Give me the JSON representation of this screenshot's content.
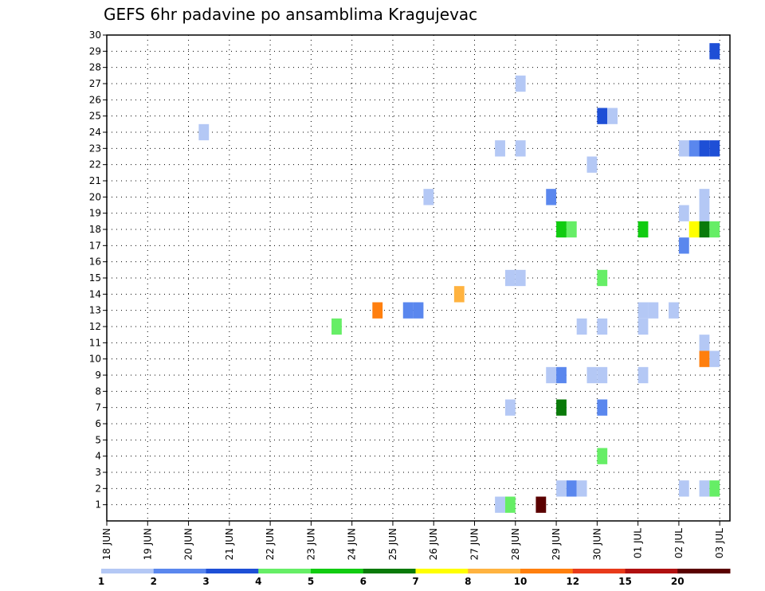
{
  "chart_data": {
    "type": "heatmap",
    "title": "GEFS 6hr padavine po ansamblima Kragujevac",
    "xlabel": "",
    "ylabel": "",
    "x_ticks": [
      "18 JUN",
      "19 JUN",
      "20 JUN",
      "21 JUN",
      "22 JUN",
      "23 JUN",
      "24 JUN",
      "25 JUN",
      "26 JUN",
      "27 JUN",
      "28 JUN",
      "29 JUN",
      "30 JUN",
      "01 JUL",
      "02 JUL",
      "03 JUL"
    ],
    "xlim_days": [
      0,
      15.25
    ],
    "y_ticks": [
      1,
      2,
      3,
      4,
      5,
      6,
      7,
      8,
      9,
      10,
      11,
      12,
      13,
      14,
      15,
      16,
      17,
      18,
      19,
      20,
      21,
      22,
      23,
      24,
      25,
      26,
      27,
      28,
      29,
      30
    ],
    "ylim": [
      0,
      30
    ],
    "grid": true,
    "colorbar": {
      "levels": [
        "1",
        "2",
        "3",
        "4",
        "5",
        "6",
        "7",
        "8",
        "10",
        "12",
        "15",
        "20"
      ],
      "colors": [
        "#b4c8f5",
        "#5a87ee",
        "#1e4fd6",
        "#66ee66",
        "#11cc11",
        "#0a7a0a",
        "#ffff00",
        "#ffb340",
        "#ff7f0e",
        "#e83a1a",
        "#b01010",
        "#5a0000"
      ]
    },
    "cells_note": "each cell: [day_offset_from_18_JUN, member, color_index]",
    "cells": [
      [
        14.75,
        29,
        2
      ],
      [
        10.0,
        27,
        0
      ],
      [
        12.0,
        25,
        2
      ],
      [
        12.25,
        25,
        0
      ],
      [
        2.25,
        24,
        0
      ],
      [
        9.5,
        23,
        0
      ],
      [
        10.0,
        23,
        0
      ],
      [
        14.0,
        23,
        0
      ],
      [
        14.25,
        23,
        1
      ],
      [
        14.5,
        23,
        2
      ],
      [
        14.75,
        23,
        2
      ],
      [
        11.75,
        22,
        0
      ],
      [
        7.75,
        20,
        0
      ],
      [
        10.75,
        20,
        1
      ],
      [
        14.5,
        20,
        0
      ],
      [
        14.0,
        19,
        0
      ],
      [
        14.5,
        19,
        0
      ],
      [
        11.0,
        18,
        4
      ],
      [
        11.25,
        18,
        3
      ],
      [
        13.0,
        18,
        4
      ],
      [
        14.25,
        18,
        6
      ],
      [
        14.5,
        18,
        5
      ],
      [
        14.75,
        18,
        3
      ],
      [
        14.0,
        17,
        1
      ],
      [
        9.75,
        15,
        0
      ],
      [
        10.0,
        15,
        0
      ],
      [
        12.0,
        15,
        3
      ],
      [
        8.5,
        14,
        7
      ],
      [
        6.5,
        13,
        8
      ],
      [
        7.25,
        13,
        1
      ],
      [
        7.5,
        13,
        1
      ],
      [
        13.0,
        13,
        0
      ],
      [
        13.25,
        13,
        0
      ],
      [
        13.75,
        13,
        0
      ],
      [
        5.5,
        12,
        3
      ],
      [
        11.5,
        12,
        0
      ],
      [
        12.0,
        12,
        0
      ],
      [
        13.0,
        12,
        0
      ],
      [
        14.5,
        11,
        0
      ],
      [
        14.5,
        10,
        8
      ],
      [
        14.75,
        10,
        0
      ],
      [
        10.75,
        9,
        0
      ],
      [
        11.0,
        9,
        1
      ],
      [
        11.75,
        9,
        0
      ],
      [
        12.0,
        9,
        0
      ],
      [
        13.0,
        9,
        0
      ],
      [
        9.75,
        7,
        0
      ],
      [
        11.0,
        7,
        5
      ],
      [
        12.0,
        7,
        1
      ],
      [
        12.0,
        4,
        3
      ],
      [
        11.0,
        2,
        0
      ],
      [
        11.25,
        2,
        1
      ],
      [
        11.5,
        2,
        0
      ],
      [
        14.0,
        2,
        0
      ],
      [
        14.5,
        2,
        0
      ],
      [
        14.75,
        2,
        3
      ],
      [
        9.5,
        1,
        0
      ],
      [
        9.75,
        1,
        3
      ],
      [
        10.5,
        1,
        11
      ]
    ]
  }
}
